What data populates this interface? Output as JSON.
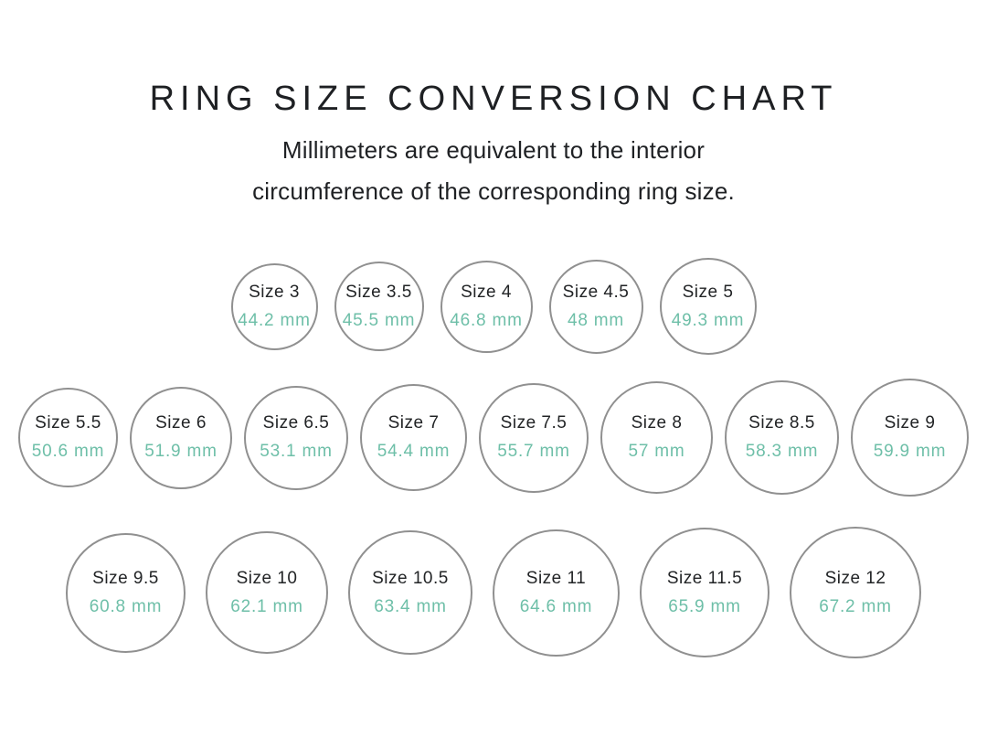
{
  "title": "RING SIZE CONVERSION CHART",
  "subtitle_line1": "Millimeters are equivalent to the interior",
  "subtitle_line2": "circumference of the corresponding ring size.",
  "colors": {
    "accent_teal": "#6ebfa8",
    "circle_border": "#909090",
    "text_dark": "#1e2023"
  },
  "rows": [
    {
      "items": [
        {
          "size_label": "Size 3",
          "mm_label": "44.2 mm",
          "mm": 44.2
        },
        {
          "size_label": "Size 3.5",
          "mm_label": "45.5 mm",
          "mm": 45.5
        },
        {
          "size_label": "Size 4",
          "mm_label": "46.8 mm",
          "mm": 46.8
        },
        {
          "size_label": "Size 4.5",
          "mm_label": "48 mm",
          "mm": 48
        },
        {
          "size_label": "Size 5",
          "mm_label": "49.3 mm",
          "mm": 49.3
        }
      ]
    },
    {
      "items": [
        {
          "size_label": "Size 5.5",
          "mm_label": "50.6 mm",
          "mm": 50.6
        },
        {
          "size_label": "Size 6",
          "mm_label": "51.9 mm",
          "mm": 51.9
        },
        {
          "size_label": "Size 6.5",
          "mm_label": "53.1 mm",
          "mm": 53.1
        },
        {
          "size_label": "Size 7",
          "mm_label": "54.4 mm",
          "mm": 54.4
        },
        {
          "size_label": "Size 7.5",
          "mm_label": "55.7 mm",
          "mm": 55.7
        },
        {
          "size_label": "Size 8",
          "mm_label": "57 mm",
          "mm": 57
        },
        {
          "size_label": "Size 8.5",
          "mm_label": "58.3 mm",
          "mm": 58.3
        },
        {
          "size_label": "Size 9",
          "mm_label": "59.9 mm",
          "mm": 59.9
        }
      ]
    },
    {
      "items": [
        {
          "size_label": "Size 9.5",
          "mm_label": "60.8 mm",
          "mm": 60.8
        },
        {
          "size_label": "Size 10",
          "mm_label": "62.1 mm",
          "mm": 62.1
        },
        {
          "size_label": "Size 10.5",
          "mm_label": "63.4 mm",
          "mm": 63.4
        },
        {
          "size_label": "Size 11",
          "mm_label": "64.6 mm",
          "mm": 64.6
        },
        {
          "size_label": "Size 11.5",
          "mm_label": "65.9 mm",
          "mm": 65.9
        },
        {
          "size_label": "Size 12",
          "mm_label": "67.2 mm",
          "mm": 67.2
        }
      ]
    }
  ]
}
